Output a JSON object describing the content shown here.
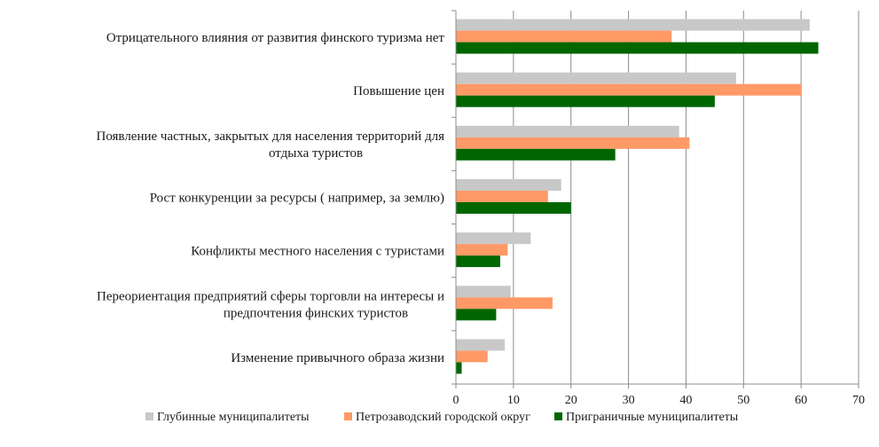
{
  "chart_data": {
    "type": "bar",
    "orientation": "horizontal",
    "title": "",
    "xlabel": "",
    "ylabel": "",
    "xlim": [
      0,
      70
    ],
    "xticks": [
      0,
      10,
      20,
      30,
      40,
      50,
      60,
      70
    ],
    "grid": true,
    "legend_position": "bottom",
    "categories": [
      [
        "Отрицательного  влияния  от развития  финского туризма  нет"
      ],
      [
        "Повышение цен"
      ],
      [
        "Появление частных, закрытых для населения  территорий  для",
        "отдыха туристов"
      ],
      [
        "Рост конкуренции  за ресурсы ( например,  за землю)"
      ],
      [
        "Конфликты  местного населения  с туристами"
      ],
      [
        "Переориентация  предприятий  сферы торговли на интересы и",
        "предпочтения  финских  туристов"
      ],
      [
        "Изменение привычного  образа жизни"
      ]
    ],
    "series": [
      {
        "name": "Глубинные  муниципалитеты",
        "color": "#c8c8c8",
        "values": [
          61.5,
          48.7,
          38.8,
          18.3,
          13.0,
          9.5,
          8.5
        ]
      },
      {
        "name": "Петрозаводский городской округ",
        "color": "#ff9966",
        "values": [
          37.5,
          60.0,
          40.6,
          16.0,
          9.0,
          16.8,
          5.5
        ]
      },
      {
        "name": "Приграничные  муниципалитеты",
        "color": "#006600",
        "values": [
          63.0,
          45.0,
          27.7,
          20.0,
          7.7,
          7.0,
          1.0
        ]
      }
    ]
  }
}
